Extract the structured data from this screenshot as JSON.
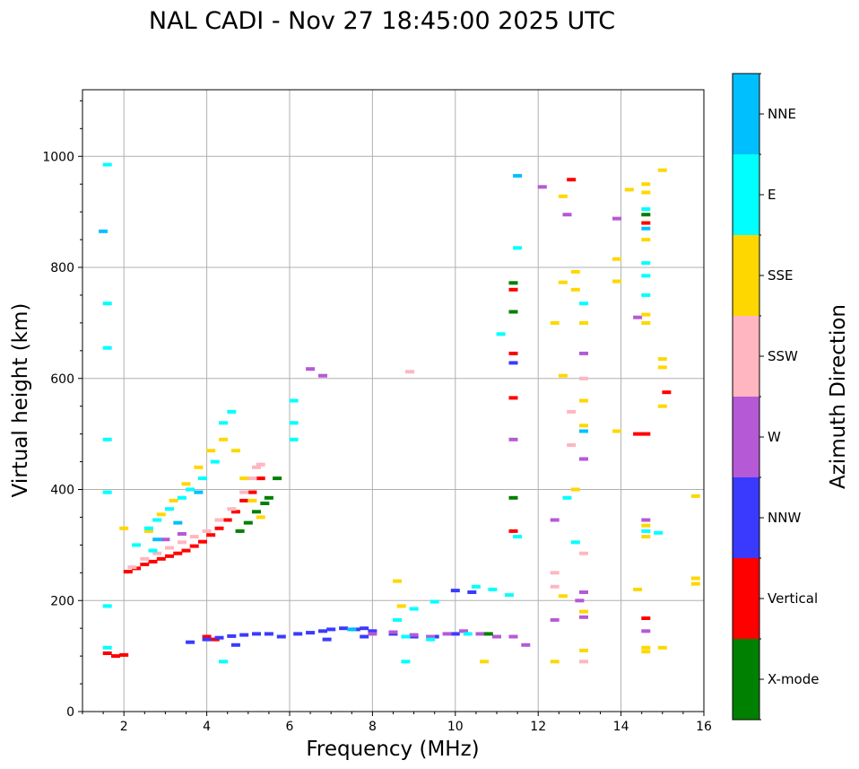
{
  "chart_data": {
    "type": "scatter",
    "title": "NAL CADI - Nov 27 18:45:00 2025 UTC",
    "xlabel": "Frequency (MHz)",
    "ylabel": "Virtual height (km)",
    "xlim": [
      1,
      16
    ],
    "ylim": [
      0,
      1120
    ],
    "xticks": [
      2,
      4,
      6,
      8,
      10,
      12,
      14,
      16
    ],
    "yticks": [
      0,
      200,
      400,
      600,
      800,
      1000
    ],
    "grid": true,
    "colorbar": {
      "label": "Azimuth Direction",
      "position": "right",
      "entries": [
        {
          "name": "X-mode",
          "color": "#008000"
        },
        {
          "name": "Vertical",
          "color": "#ff0000"
        },
        {
          "name": "NNW",
          "color": "#3a3aff"
        },
        {
          "name": "W",
          "color": "#b659d6"
        },
        {
          "name": "SSW",
          "color": "#ffb6c1"
        },
        {
          "name": "SSE",
          "color": "#ffd700"
        },
        {
          "name": "E",
          "color": "#00ffff"
        },
        {
          "name": "NNE",
          "color": "#00bfff"
        }
      ]
    },
    "series": [
      {
        "name": "Vertical",
        "points": [
          [
            2.1,
            252
          ],
          [
            2.3,
            258
          ],
          [
            2.5,
            265
          ],
          [
            2.7,
            270
          ],
          [
            2.9,
            275
          ],
          [
            3.1,
            280
          ],
          [
            3.3,
            285
          ],
          [
            3.5,
            290
          ],
          [
            3.7,
            298
          ],
          [
            3.9,
            306
          ],
          [
            4.1,
            318
          ],
          [
            4.3,
            330
          ],
          [
            4.5,
            345
          ],
          [
            4.7,
            360
          ],
          [
            4.9,
            380
          ],
          [
            5.1,
            395
          ],
          [
            5.3,
            420
          ],
          [
            1.6,
            105
          ],
          [
            1.8,
            100
          ],
          [
            4.0,
            135
          ],
          [
            4.2,
            130
          ],
          [
            11.4,
            760
          ],
          [
            11.4,
            645
          ],
          [
            11.4,
            565
          ],
          [
            11.4,
            325
          ],
          [
            14.4,
            500
          ],
          [
            14.6,
            500
          ],
          [
            14.6,
            168
          ],
          [
            14.6,
            880
          ],
          [
            15.1,
            575
          ],
          [
            12.8,
            958
          ],
          [
            2.0,
            102
          ]
        ]
      },
      {
        "name": "NNW",
        "points": [
          [
            3.6,
            125
          ],
          [
            4.0,
            130
          ],
          [
            4.3,
            133
          ],
          [
            4.6,
            136
          ],
          [
            4.9,
            138
          ],
          [
            5.2,
            140
          ],
          [
            5.5,
            140
          ],
          [
            5.8,
            135
          ],
          [
            6.2,
            140
          ],
          [
            6.5,
            142
          ],
          [
            6.8,
            145
          ],
          [
            7.0,
            148
          ],
          [
            7.3,
            150
          ],
          [
            7.6,
            148
          ],
          [
            7.8,
            150
          ],
          [
            8.0,
            145
          ],
          [
            8.5,
            140
          ],
          [
            9.0,
            135
          ],
          [
            9.5,
            135
          ],
          [
            10.0,
            218
          ],
          [
            10.4,
            215
          ],
          [
            10.0,
            140
          ],
          [
            11.4,
            628
          ],
          [
            4.7,
            120
          ],
          [
            6.9,
            130
          ],
          [
            7.8,
            135
          ]
        ]
      },
      {
        "name": "W",
        "points": [
          [
            8.0,
            140
          ],
          [
            8.5,
            143
          ],
          [
            9.0,
            138
          ],
          [
            9.4,
            135
          ],
          [
            9.8,
            140
          ],
          [
            10.2,
            145
          ],
          [
            10.6,
            140
          ],
          [
            11.0,
            135
          ],
          [
            11.4,
            135
          ],
          [
            11.7,
            120
          ],
          [
            11.4,
            490
          ],
          [
            6.5,
            617
          ],
          [
            6.8,
            605
          ],
          [
            12.1,
            945
          ],
          [
            12.7,
            895
          ],
          [
            12.4,
            345
          ],
          [
            12.4,
            165
          ],
          [
            13.0,
            200
          ],
          [
            13.1,
            170
          ],
          [
            13.1,
            215
          ],
          [
            13.1,
            455
          ],
          [
            13.1,
            645
          ],
          [
            13.9,
            888
          ],
          [
            14.4,
            710
          ],
          [
            14.6,
            345
          ],
          [
            14.6,
            145
          ],
          [
            3.0,
            310
          ],
          [
            3.4,
            320
          ]
        ]
      },
      {
        "name": "SSW",
        "points": [
          [
            2.2,
            260
          ],
          [
            2.5,
            275
          ],
          [
            2.8,
            285
          ],
          [
            3.1,
            295
          ],
          [
            3.4,
            305
          ],
          [
            3.7,
            315
          ],
          [
            4.0,
            325
          ],
          [
            4.3,
            345
          ],
          [
            4.6,
            365
          ],
          [
            4.9,
            395
          ],
          [
            5.1,
            420
          ],
          [
            5.3,
            445
          ],
          [
            8.9,
            612
          ],
          [
            12.4,
            250
          ],
          [
            12.4,
            225
          ],
          [
            12.8,
            540
          ],
          [
            12.8,
            480
          ],
          [
            13.1,
            600
          ],
          [
            13.1,
            285
          ],
          [
            13.1,
            90
          ],
          [
            5.2,
            440
          ]
        ]
      },
      {
        "name": "SSE",
        "points": [
          [
            2.6,
            325
          ],
          [
            2.9,
            355
          ],
          [
            3.2,
            380
          ],
          [
            3.5,
            410
          ],
          [
            3.8,
            440
          ],
          [
            4.1,
            470
          ],
          [
            4.4,
            490
          ],
          [
            4.7,
            470
          ],
          [
            4.9,
            420
          ],
          [
            5.1,
            380
          ],
          [
            5.3,
            350
          ],
          [
            8.7,
            190
          ],
          [
            8.6,
            235
          ],
          [
            12.4,
            700
          ],
          [
            12.6,
            928
          ],
          [
            12.6,
            605
          ],
          [
            12.6,
            773
          ],
          [
            12.6,
            208
          ],
          [
            12.9,
            792
          ],
          [
            12.9,
            760
          ],
          [
            12.9,
            400
          ],
          [
            13.1,
            560
          ],
          [
            13.1,
            700
          ],
          [
            13.1,
            515
          ],
          [
            13.1,
            110
          ],
          [
            13.1,
            180
          ],
          [
            13.9,
            815
          ],
          [
            13.9,
            775
          ],
          [
            13.9,
            505
          ],
          [
            14.2,
            940
          ],
          [
            14.4,
            220
          ],
          [
            14.6,
            850
          ],
          [
            14.6,
            950
          ],
          [
            14.6,
            935
          ],
          [
            14.6,
            715
          ],
          [
            14.6,
            700
          ],
          [
            14.6,
            335
          ],
          [
            14.6,
            315
          ],
          [
            14.6,
            115
          ],
          [
            14.6,
            108
          ],
          [
            15.0,
            975
          ],
          [
            15.0,
            635
          ],
          [
            15.0,
            620
          ],
          [
            15.0,
            550
          ],
          [
            15.0,
            115
          ],
          [
            15.8,
            388
          ],
          [
            15.8,
            240
          ],
          [
            15.8,
            230
          ],
          [
            12.4,
            90
          ],
          [
            10.7,
            90
          ],
          [
            2.0,
            330
          ]
        ]
      },
      {
        "name": "E",
        "points": [
          [
            2.3,
            300
          ],
          [
            2.6,
            330
          ],
          [
            2.8,
            345
          ],
          [
            3.1,
            365
          ],
          [
            3.4,
            385
          ],
          [
            3.6,
            400
          ],
          [
            3.9,
            420
          ],
          [
            4.2,
            450
          ],
          [
            4.4,
            520
          ],
          [
            4.6,
            540
          ],
          [
            8.6,
            165
          ],
          [
            9.0,
            185
          ],
          [
            9.5,
            198
          ],
          [
            10.5,
            225
          ],
          [
            10.9,
            220
          ],
          [
            11.3,
            210
          ],
          [
            8.8,
            135
          ],
          [
            9.4,
            130
          ],
          [
            10.3,
            140
          ],
          [
            11.1,
            680
          ],
          [
            11.5,
            835
          ],
          [
            11.5,
            315
          ],
          [
            12.7,
            385
          ],
          [
            12.9,
            305
          ],
          [
            13.1,
            735
          ],
          [
            14.6,
            905
          ],
          [
            14.6,
            808
          ],
          [
            14.6,
            785
          ],
          [
            14.6,
            750
          ],
          [
            14.6,
            325
          ],
          [
            14.9,
            322
          ],
          [
            1.6,
            985
          ],
          [
            1.6,
            735
          ],
          [
            1.6,
            655
          ],
          [
            1.6,
            490
          ],
          [
            1.6,
            395
          ],
          [
            1.6,
            190
          ],
          [
            1.6,
            115
          ],
          [
            6.1,
            560
          ],
          [
            6.1,
            520
          ],
          [
            6.1,
            490
          ],
          [
            4.4,
            90
          ],
          [
            8.8,
            90
          ],
          [
            2.7,
            290
          ]
        ]
      },
      {
        "name": "NNE",
        "points": [
          [
            1.5,
            865
          ],
          [
            11.5,
            965
          ],
          [
            14.6,
            870
          ],
          [
            13.1,
            505
          ],
          [
            2.8,
            310
          ],
          [
            3.3,
            340
          ],
          [
            3.8,
            395
          ],
          [
            7.5,
            148
          ]
        ]
      },
      {
        "name": "X-mode",
        "points": [
          [
            4.8,
            325
          ],
          [
            5.0,
            340
          ],
          [
            5.2,
            360
          ],
          [
            5.4,
            375
          ],
          [
            5.5,
            385
          ],
          [
            5.7,
            420
          ],
          [
            11.4,
            772
          ],
          [
            11.4,
            720
          ],
          [
            11.4,
            385
          ],
          [
            10.8,
            140
          ],
          [
            14.6,
            895
          ]
        ]
      }
    ]
  }
}
